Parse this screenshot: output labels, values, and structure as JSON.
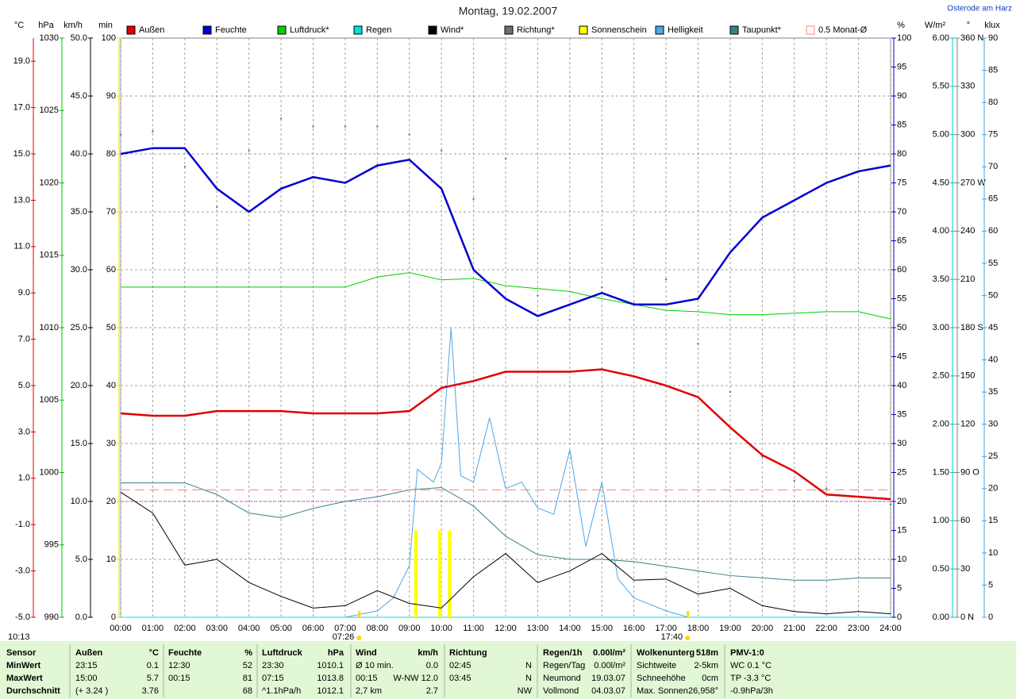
{
  "chart_data": {
    "type": "line",
    "title": "Montag, 19.02.2007",
    "location": "Osterode am Harz",
    "now": "10:13",
    "xlim": [
      0,
      24
    ],
    "x": [
      0,
      1,
      2,
      3,
      4,
      5,
      6,
      7,
      8,
      9,
      10,
      11,
      12,
      13,
      14,
      15,
      16,
      17,
      18,
      19,
      20,
      21,
      22,
      23,
      24
    ],
    "xticks": [
      {
        "value": 0,
        "label": "00:00"
      },
      {
        "value": 1,
        "label": "01:00"
      },
      {
        "value": 2,
        "label": "02:00"
      },
      {
        "value": 3,
        "label": "03:00"
      },
      {
        "value": 4,
        "label": "04:00"
      },
      {
        "value": 5,
        "label": "05:00"
      },
      {
        "value": 6,
        "label": "06:00"
      },
      {
        "value": 7,
        "label": "07:00"
      },
      {
        "value": 8,
        "label": "08:00"
      },
      {
        "value": 9,
        "label": "09:00"
      },
      {
        "value": 10,
        "label": "10:00"
      },
      {
        "value": 11,
        "label": "11:00"
      },
      {
        "value": 12,
        "label": "12:00"
      },
      {
        "value": 13,
        "label": "13:00"
      },
      {
        "value": 14,
        "label": "14:00"
      },
      {
        "value": 15,
        "label": "15:00"
      },
      {
        "value": 16,
        "label": "16:00"
      },
      {
        "value": 17,
        "label": "17:00"
      },
      {
        "value": 18,
        "label": "18:00"
      },
      {
        "value": 19,
        "label": "19:00"
      },
      {
        "value": 20,
        "label": "20:00"
      },
      {
        "value": 21,
        "label": "21:00"
      },
      {
        "value": 22,
        "label": "22:00"
      },
      {
        "value": 23,
        "label": "23:00"
      },
      {
        "value": 24,
        "label": "24:00"
      }
    ],
    "sun_marks": {
      "x": [
        7.43,
        17.67
      ],
      "labels": [
        "07:26",
        "17:40"
      ],
      "color": "#ffd800"
    },
    "grid": true,
    "grid_axis": 2,
    "axes": [
      {
        "unit": "°C",
        "color": "#e00000",
        "lim": [
          -5,
          20
        ],
        "ticks": [
          {
            "value": -5,
            "label": "-5.0"
          },
          {
            "value": -3,
            "label": "-3.0"
          },
          {
            "value": -1,
            "label": "-1.0"
          },
          {
            "value": 1,
            "label": "1.0"
          },
          {
            "value": 3,
            "label": "3.0"
          },
          {
            "value": 5,
            "label": "5.0"
          },
          {
            "value": 7,
            "label": "7.0"
          },
          {
            "value": 9,
            "label": "9.0"
          },
          {
            "value": 11,
            "label": "11.0"
          },
          {
            "value": 13,
            "label": "13.0"
          },
          {
            "value": 15,
            "label": "15.0"
          },
          {
            "value": 17,
            "label": "17.0"
          },
          {
            "value": 19,
            "label": "19.0"
          }
        ]
      },
      {
        "unit": "hPa",
        "color": "#00c000",
        "lim": [
          990,
          1030
        ],
        "ticks": [
          990,
          995,
          1000,
          1005,
          1010,
          1015,
          1020,
          1025,
          1030
        ]
      },
      {
        "unit": "km/h",
        "color": "#000000",
        "lim": [
          0,
          50
        ],
        "ticks": [
          {
            "value": 0,
            "label": "0.0"
          },
          {
            "value": 5,
            "label": "5.0"
          },
          {
            "value": 10,
            "label": "10.0"
          },
          {
            "value": 15,
            "label": "15.0"
          },
          {
            "value": 20,
            "label": "20.0"
          },
          {
            "value": 25,
            "label": "25.0"
          },
          {
            "value": 30,
            "label": "30.0"
          },
          {
            "value": 35,
            "label": "35.0"
          },
          {
            "value": 40,
            "label": "40.0"
          },
          {
            "value": 45,
            "label": "45.0"
          },
          {
            "value": 50,
            "label": "50.0"
          }
        ]
      },
      {
        "unit": "min",
        "color": "#e8e000",
        "lim": [
          0,
          100
        ],
        "ticks": [
          0,
          10,
          20,
          30,
          40,
          50,
          60,
          70,
          80,
          90,
          100
        ]
      },
      {
        "unit": "%",
        "color": "#0000c0",
        "lim": [
          0,
          100
        ],
        "ticks": [
          0,
          5,
          10,
          15,
          20,
          25,
          30,
          35,
          40,
          45,
          50,
          55,
          60,
          65,
          70,
          75,
          80,
          85,
          90,
          95,
          100
        ]
      },
      {
        "unit": "W/m²",
        "color": "#00c8c8",
        "lim": [
          0,
          6
        ],
        "ticks": [
          {
            "value": 0,
            "label": "0.00"
          },
          {
            "value": 0.5,
            "label": "0.50"
          },
          {
            "value": 1,
            "label": "1.00"
          },
          {
            "value": 1.5,
            "label": "1.50"
          },
          {
            "value": 2,
            "label": "2.00"
          },
          {
            "value": 2.5,
            "label": "2.50"
          },
          {
            "value": 3,
            "label": "3.00"
          },
          {
            "value": 3.5,
            "label": "3.50"
          },
          {
            "value": 4,
            "label": "4.00"
          },
          {
            "value": 4.5,
            "label": "4.50"
          },
          {
            "value": 5,
            "label": "5.00"
          },
          {
            "value": 5.5,
            "label": "5.50"
          },
          {
            "value": 6,
            "label": "6.00"
          }
        ]
      },
      {
        "unit": "°",
        "color": "#808080",
        "lim": [
          0,
          360
        ],
        "ticks": [
          {
            "value": 0,
            "label": "0 N"
          },
          30,
          60,
          {
            "value": 90,
            "label": "90 O"
          },
          120,
          150,
          {
            "value": 180,
            "label": "180 S"
          },
          210,
          240,
          {
            "value": 270,
            "label": "270 W"
          },
          300,
          330,
          {
            "value": 360,
            "label": "360 N"
          }
        ]
      },
      {
        "unit": "klux",
        "color": "#40a0e0",
        "lim": [
          0,
          90
        ],
        "ticks": [
          0,
          5,
          10,
          15,
          20,
          25,
          30,
          35,
          40,
          45,
          50,
          55,
          60,
          65,
          70,
          75,
          80,
          85,
          90
        ]
      }
    ],
    "reference_lines": [
      {
        "axis": 0,
        "value": 0,
        "color": "#c000c0"
      }
    ],
    "series": [
      {
        "name": "Außen",
        "color": "#e00000",
        "axis": 0,
        "style": "line",
        "width": 2.5,
        "values": [
          3.8,
          3.7,
          3.7,
          3.9,
          3.9,
          3.9,
          3.8,
          3.8,
          3.8,
          3.9,
          4.9,
          5.2,
          5.6,
          5.6,
          5.6,
          5.7,
          5.4,
          5.0,
          4.5,
          3.2,
          2.0,
          1.3,
          0.3,
          0.2,
          0.1
        ]
      },
      {
        "name": "Feuchte",
        "color": "#0000d0",
        "axis": 4,
        "style": "line",
        "width": 2.5,
        "values": [
          80,
          81,
          81,
          74,
          70,
          74,
          76,
          75,
          78,
          79,
          74,
          60,
          55,
          52,
          54,
          56,
          54,
          54,
          55,
          63,
          69,
          72,
          75,
          77,
          78
        ]
      },
      {
        "name": "Luftdruck*",
        "color": "#00d000",
        "axis": 1,
        "style": "line",
        "width": 1,
        "values": [
          1012.8,
          1012.8,
          1012.8,
          1012.8,
          1012.8,
          1012.8,
          1012.8,
          1012.8,
          1013.5,
          1013.8,
          1013.3,
          1013.4,
          1012.9,
          1012.7,
          1012.5,
          1012.0,
          1011.6,
          1011.2,
          1011.1,
          1010.9,
          1010.9,
          1011.0,
          1011.1,
          1011.1,
          1010.6
        ]
      },
      {
        "name": "Regen",
        "color": "#00e0e0",
        "axis": 5,
        "style": "line",
        "width": 1,
        "x": [
          0,
          24
        ],
        "values": [
          0,
          0
        ]
      },
      {
        "name": "Wind*",
        "color": "#000000",
        "axis": 2,
        "style": "line",
        "width": 1,
        "values": [
          10.8,
          9.0,
          4.5,
          5.0,
          3.0,
          1.8,
          0.8,
          1.0,
          2.3,
          1.2,
          0.8,
          3.5,
          5.5,
          3.0,
          4.0,
          5.5,
          3.2,
          3.3,
          2.0,
          2.5,
          1.0,
          0.5,
          0.3,
          0.5,
          0.3
        ]
      },
      {
        "name": "Richtung*",
        "color": "#707070",
        "axis": 6,
        "style": "dots",
        "values": [
          300,
          302,
          280,
          255,
          290,
          310,
          305,
          305,
          305,
          300,
          290,
          260,
          285,
          200,
          185,
          205,
          195,
          210,
          170,
          140,
          100,
          85,
          80,
          75,
          70
        ]
      },
      {
        "name": "Sonnenschein",
        "color": "#ffff00",
        "axis": 3,
        "style": "bars",
        "x": [
          9.2,
          9.95,
          10.25
        ],
        "values": [
          15,
          15,
          15
        ]
      },
      {
        "name": "Helligkeit",
        "color": "#4da6e8",
        "axis": 7,
        "style": "line",
        "width": 1,
        "x": [
          0,
          7,
          8,
          8.5,
          9,
          9.25,
          9.75,
          10,
          10.3,
          10.6,
          11,
          11.5,
          12,
          12.5,
          13,
          13.5,
          14,
          14.5,
          15,
          15.5,
          16,
          17,
          17.7,
          24
        ],
        "values": [
          0,
          0,
          1,
          3,
          8,
          23,
          21,
          24,
          45,
          22,
          21,
          31,
          20,
          21,
          17,
          16,
          26,
          11,
          21,
          6,
          3,
          1,
          0,
          0
        ]
      },
      {
        "name": "Taupunkt*",
        "color": "#3a7f8a",
        "axis": 0,
        "style": "line",
        "width": 1,
        "values": [
          0.8,
          0.8,
          0.8,
          0.3,
          -0.5,
          -0.7,
          -0.3,
          0.0,
          0.2,
          0.5,
          0.6,
          -0.2,
          -1.5,
          -2.3,
          -2.5,
          -2.5,
          -2.6,
          -2.8,
          -3.0,
          -3.2,
          -3.3,
          -3.4,
          -3.4,
          -3.3,
          -3.3
        ]
      },
      {
        "name": "0.5 Monat-Ø",
        "color": "#ff8080",
        "axis": 0,
        "style": "dashed",
        "width": 1,
        "x": [
          0,
          24
        ],
        "values": [
          0.5,
          0.5
        ]
      }
    ]
  },
  "table": {
    "groups": [
      {
        "left": [
          "Sensor",
          "MinWert",
          "MaxWert",
          "Durchschnitt"
        ],
        "bold": true
      },
      {
        "left": [
          "Außen",
          "23:15",
          "15:00",
          "(+ 3.24 )"
        ],
        "right": [
          "°C",
          "0.1",
          "5.7",
          "3.76"
        ]
      },
      {
        "left": [
          "Feuchte",
          "12:30",
          "00:15",
          null
        ],
        "right": [
          "%",
          "52",
          "81",
          "68"
        ]
      },
      {
        "left": [
          "Luftdruck",
          "23:30",
          "07:15",
          "^1.1hPa/h"
        ],
        "right": [
          "hPa",
          "1010.1",
          "1013.8",
          "1012.1"
        ]
      },
      {
        "left": [
          "Wind",
          "Ø 10 min.",
          "00:15",
          "2,7 km"
        ],
        "right": [
          "km/h",
          "0.0",
          "W-NW 12.0",
          "2.7"
        ]
      },
      {
        "left": [
          "Richtung",
          "02:45",
          "03:45",
          null
        ],
        "right": [
          null,
          "N",
          "N",
          "NW"
        ]
      },
      {
        "left": [
          "Regen/1h",
          "Regen/Tag",
          "Neumond",
          "Vollmond"
        ],
        "right": [
          "0.00l/m²",
          "0.00l/m²",
          "19.03.07",
          "04.03.07"
        ]
      },
      {
        "left": [
          "Wolkenunterg",
          "Sichtweite",
          "Schneehöhe",
          "Max. Sonnen"
        ],
        "right": [
          "518m",
          "2-5km",
          "0cm",
          "26,958°"
        ]
      },
      {
        "left": [
          "PMV-1:0",
          "WC 0.1 °C",
          "TP -3.3 °C",
          "-0.9hPa/3h"
        ]
      }
    ]
  }
}
